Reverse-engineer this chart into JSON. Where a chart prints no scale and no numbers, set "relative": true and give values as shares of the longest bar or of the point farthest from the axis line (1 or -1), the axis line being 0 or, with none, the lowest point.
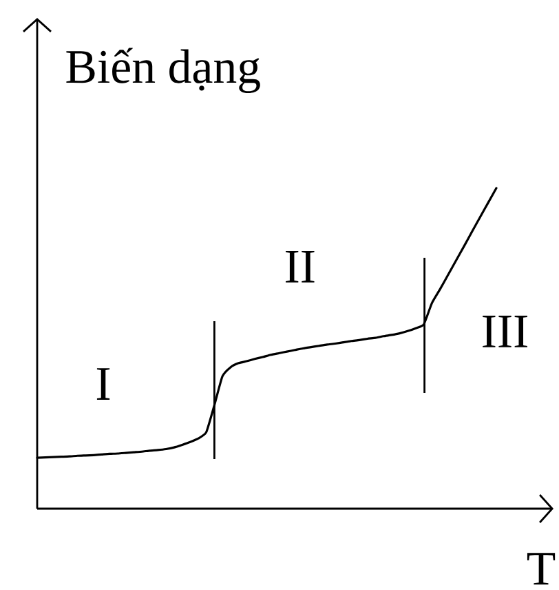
{
  "chart_data": {
    "type": "line",
    "relative": true,
    "xlabel": "T",
    "ylabel": "Biến dạng",
    "categories": [
      null,
      null,
      null,
      null,
      null,
      null,
      null,
      null,
      null,
      null,
      null,
      null,
      null,
      null,
      null,
      null,
      null,
      null,
      null,
      null,
      null,
      null,
      null,
      null,
      null,
      null,
      null,
      null,
      null,
      null,
      null,
      null,
      null,
      null,
      null,
      null,
      null,
      null,
      null,
      null,
      null,
      null,
      null,
      null,
      null,
      null,
      null,
      null,
      null,
      null,
      null,
      null,
      null,
      null,
      null,
      null,
      null,
      null
    ],
    "values": [
      0.159,
      0.16,
      0.161,
      0.162,
      0.163,
      0.165,
      0.166,
      0.167,
      0.169,
      0.171,
      0.172,
      0.174,
      0.176,
      0.178,
      0.181,
      0.183,
      0.186,
      0.191,
      0.199,
      0.208,
      0.219,
      0.239,
      0.323,
      0.413,
      0.441,
      0.454,
      0.46,
      0.467,
      0.473,
      0.48,
      0.485,
      0.49,
      0.495,
      0.5,
      0.504,
      0.508,
      0.512,
      0.515,
      0.519,
      0.523,
      0.526,
      0.53,
      0.533,
      0.538,
      0.542,
      0.547,
      0.554,
      0.563,
      0.575,
      0.641,
      0.684,
      0.729,
      0.774,
      0.819,
      0.865,
      0.91,
      0.955,
      1
    ],
    "color": "#000000",
    "annotations": [
      "I",
      "II",
      "III"
    ]
  }
}
